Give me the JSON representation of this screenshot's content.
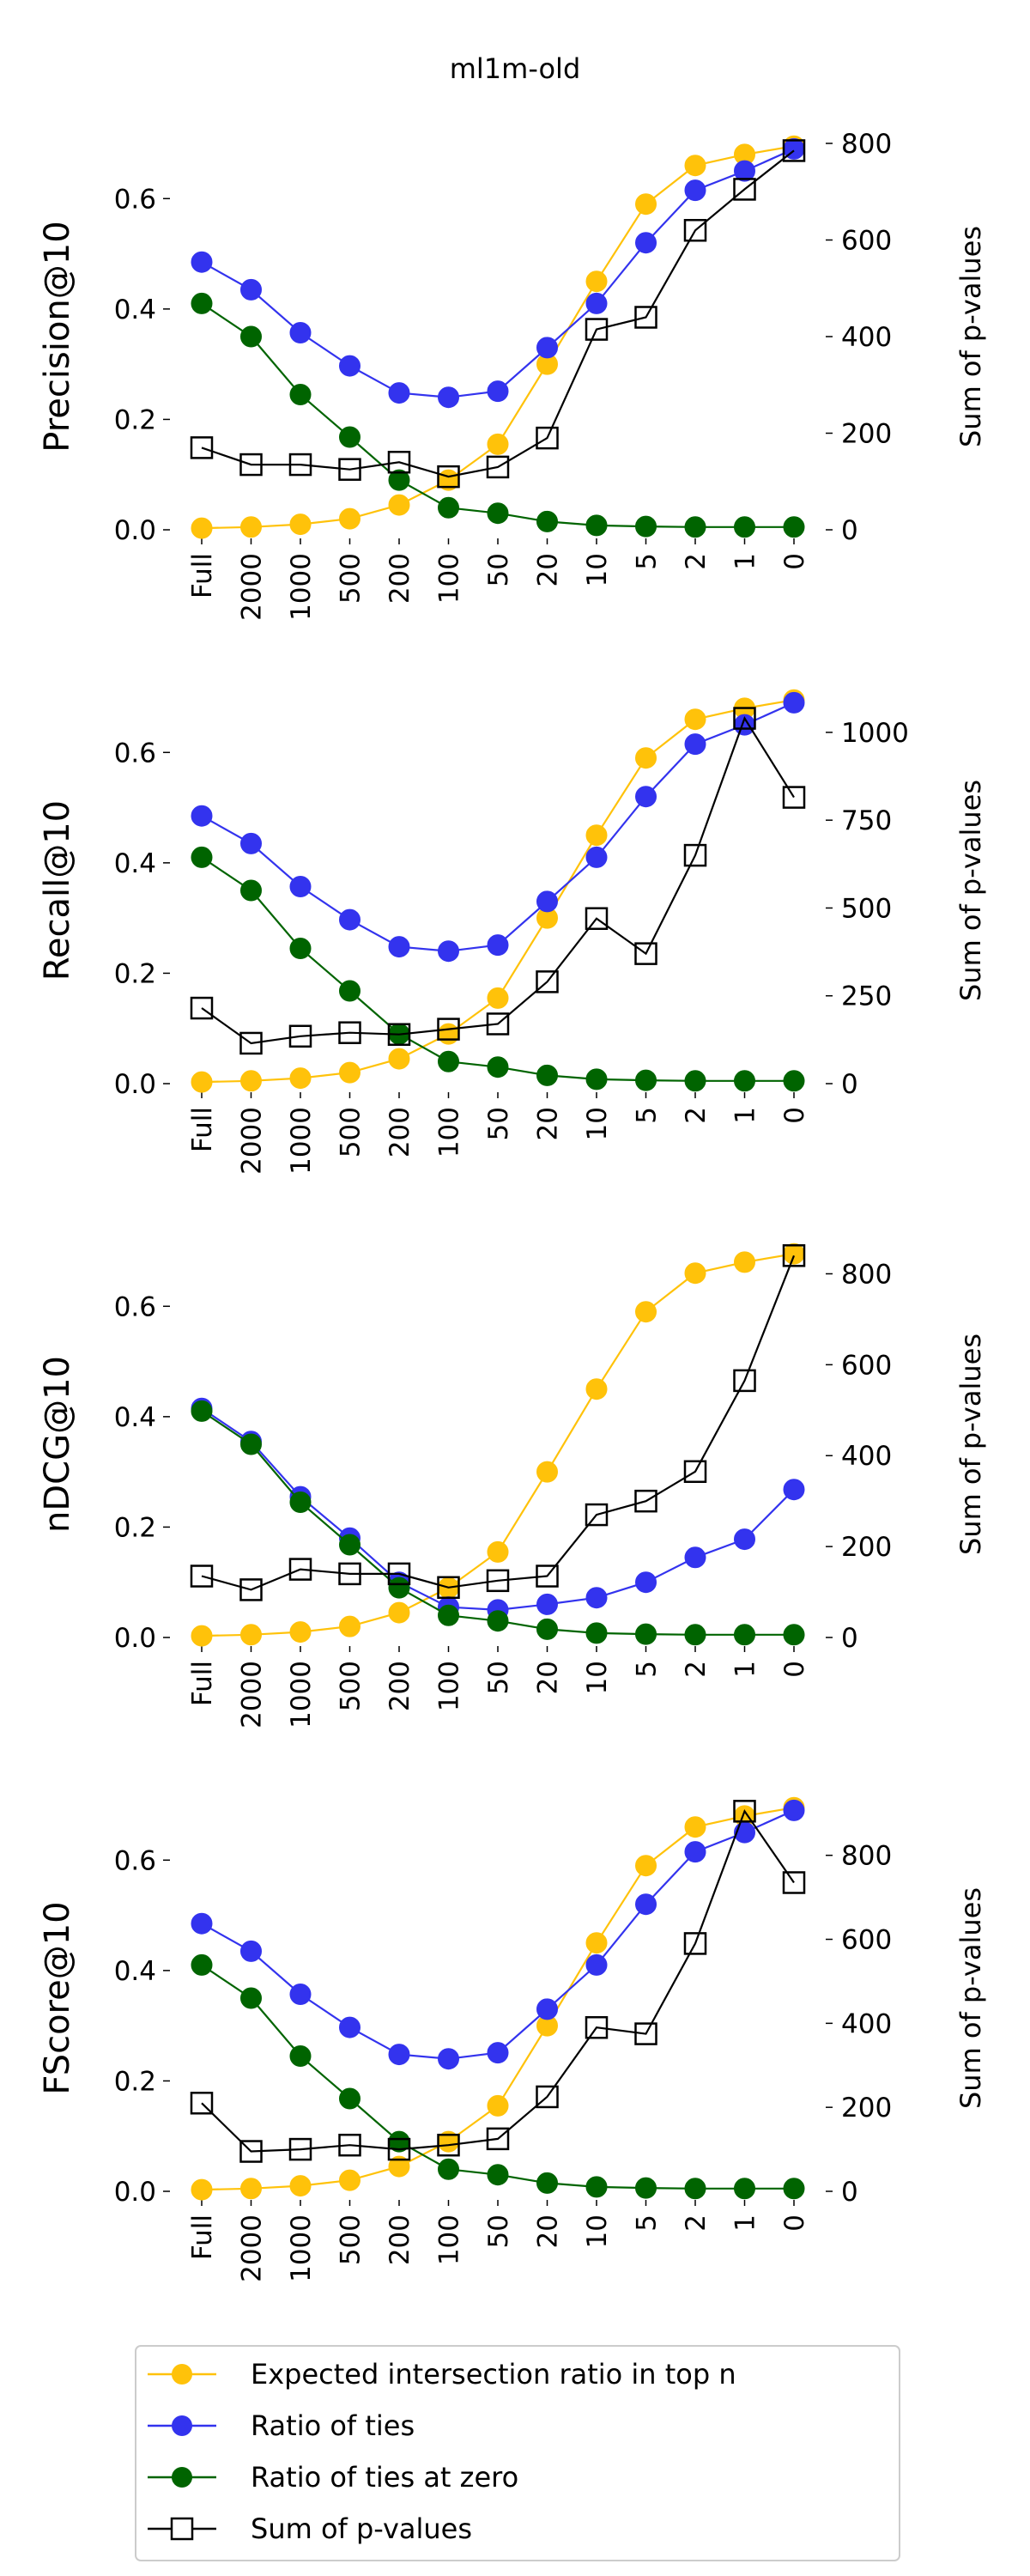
{
  "figure": {
    "title": "ml1m-old"
  },
  "colors": {
    "expected": "#FFC20A",
    "ties": "#3333EE",
    "ties_zero": "#006400",
    "pvalues": "#000000"
  },
  "legend": {
    "position": "bottom-center",
    "entries": [
      {
        "label": "Expected intersection ratio in top n",
        "marker": "circle",
        "color": "#FFC20A"
      },
      {
        "label": "Ratio of ties",
        "marker": "circle",
        "color": "#3333EE"
      },
      {
        "label": "Ratio of ties at zero",
        "marker": "circle",
        "color": "#006400"
      },
      {
        "label": "Sum of p-values",
        "marker": "open-square",
        "color": "#000000"
      }
    ]
  },
  "chart_data": [
    {
      "type": "line",
      "categories": [
        "Full",
        "2000",
        "1000",
        "500",
        "200",
        "100",
        "50",
        "20",
        "10",
        "5",
        "2",
        "1",
        "0"
      ],
      "ylabel": "Precision@10",
      "ylim": [
        0,
        0.7
      ],
      "yticks": [
        "0.0",
        "0.2",
        "0.4",
        "0.6"
      ],
      "y2label": "Sum of p-values",
      "y2lim": [
        0,
        800
      ],
      "y2ticks": [
        "0",
        "200",
        "400",
        "600",
        "800"
      ],
      "series": [
        {
          "name": "Expected intersection ratio in top n",
          "axis": "left",
          "values": [
            0.003,
            0.005,
            0.01,
            0.02,
            0.045,
            0.09,
            0.155,
            0.3,
            0.45,
            0.59,
            0.66,
            0.68,
            0.695
          ]
        },
        {
          "name": "Ratio of ties",
          "axis": "left",
          "values": [
            0.485,
            0.435,
            0.357,
            0.297,
            0.248,
            0.24,
            0.251,
            0.33,
            0.41,
            0.52,
            0.615,
            0.65,
            0.69
          ]
        },
        {
          "name": "Ratio of ties at zero",
          "axis": "left",
          "values": [
            0.41,
            0.35,
            0.245,
            0.168,
            0.09,
            0.04,
            0.03,
            0.015,
            0.008,
            0.006,
            0.005,
            0.005,
            0.005
          ]
        },
        {
          "name": "Sum of p-values",
          "axis": "right",
          "values": [
            170,
            135,
            135,
            125,
            140,
            110,
            130,
            190,
            415,
            440,
            620,
            705,
            785
          ]
        }
      ]
    },
    {
      "type": "line",
      "categories": [
        "Full",
        "2000",
        "1000",
        "500",
        "200",
        "100",
        "50",
        "20",
        "10",
        "5",
        "2",
        "1",
        "0"
      ],
      "ylabel": "Recall@10",
      "ylim": [
        0,
        0.7
      ],
      "yticks": [
        "0.0",
        "0.2",
        "0.4",
        "0.6"
      ],
      "y2label": "Sum of p-values",
      "y2lim": [
        0,
        1100
      ],
      "y2ticks": [
        "0",
        "250",
        "500",
        "750",
        "1000"
      ],
      "series": [
        {
          "name": "Expected intersection ratio in top n",
          "axis": "left",
          "values": [
            0.003,
            0.005,
            0.01,
            0.02,
            0.045,
            0.09,
            0.155,
            0.3,
            0.45,
            0.59,
            0.66,
            0.68,
            0.695
          ]
        },
        {
          "name": "Ratio of ties",
          "axis": "left",
          "values": [
            0.485,
            0.435,
            0.357,
            0.297,
            0.248,
            0.24,
            0.251,
            0.33,
            0.41,
            0.52,
            0.615,
            0.65,
            0.69
          ]
        },
        {
          "name": "Ratio of ties at zero",
          "axis": "left",
          "values": [
            0.41,
            0.35,
            0.245,
            0.168,
            0.09,
            0.04,
            0.03,
            0.015,
            0.008,
            0.006,
            0.005,
            0.005,
            0.005
          ]
        },
        {
          "name": "Sum of p-values",
          "axis": "right",
          "values": [
            215,
            115,
            135,
            145,
            140,
            155,
            170,
            290,
            470,
            370,
            650,
            1040,
            815
          ]
        }
      ]
    },
    {
      "type": "line",
      "categories": [
        "Full",
        "2000",
        "1000",
        "500",
        "200",
        "100",
        "50",
        "20",
        "10",
        "5",
        "2",
        "1",
        "0"
      ],
      "ylabel": "nDCG@10",
      "ylim": [
        0,
        0.7
      ],
      "yticks": [
        "0.0",
        "0.2",
        "0.4",
        "0.6"
      ],
      "y2label": "Sum of p-values",
      "y2lim": [
        0,
        850
      ],
      "y2ticks": [
        "0",
        "200",
        "400",
        "600",
        "800"
      ],
      "series": [
        {
          "name": "Expected intersection ratio in top n",
          "axis": "left",
          "values": [
            0.003,
            0.005,
            0.01,
            0.02,
            0.045,
            0.09,
            0.155,
            0.3,
            0.45,
            0.59,
            0.66,
            0.68,
            0.695
          ]
        },
        {
          "name": "Ratio of ties",
          "axis": "left",
          "values": [
            0.415,
            0.355,
            0.255,
            0.18,
            0.1,
            0.055,
            0.05,
            0.06,
            0.072,
            0.1,
            0.145,
            0.178,
            0.268
          ]
        },
        {
          "name": "Ratio of ties at zero",
          "axis": "left",
          "values": [
            0.41,
            0.35,
            0.245,
            0.168,
            0.09,
            0.04,
            0.03,
            0.015,
            0.008,
            0.006,
            0.005,
            0.005,
            0.005
          ]
        },
        {
          "name": "Sum of p-values",
          "axis": "right",
          "values": [
            135,
            105,
            150,
            140,
            140,
            110,
            125,
            135,
            270,
            300,
            365,
            565,
            840
          ]
        }
      ]
    },
    {
      "type": "line",
      "categories": [
        "Full",
        "2000",
        "1000",
        "500",
        "200",
        "100",
        "50",
        "20",
        "10",
        "5",
        "2",
        "1",
        "0"
      ],
      "ylabel": "FScore@10",
      "ylim": [
        0,
        0.7
      ],
      "yticks": [
        "0.0",
        "0.2",
        "0.4",
        "0.6"
      ],
      "y2label": "Sum of p-values",
      "y2lim": [
        0,
        920
      ],
      "y2ticks": [
        "0",
        "200",
        "400",
        "600",
        "800"
      ],
      "series": [
        {
          "name": "Expected intersection ratio in top n",
          "axis": "left",
          "values": [
            0.003,
            0.005,
            0.01,
            0.02,
            0.045,
            0.09,
            0.155,
            0.3,
            0.45,
            0.59,
            0.66,
            0.68,
            0.695
          ]
        },
        {
          "name": "Ratio of ties",
          "axis": "left",
          "values": [
            0.485,
            0.435,
            0.357,
            0.297,
            0.248,
            0.24,
            0.251,
            0.33,
            0.41,
            0.52,
            0.615,
            0.65,
            0.69
          ]
        },
        {
          "name": "Ratio of ties at zero",
          "axis": "left",
          "values": [
            0.41,
            0.35,
            0.245,
            0.168,
            0.09,
            0.04,
            0.03,
            0.015,
            0.008,
            0.006,
            0.005,
            0.005,
            0.005
          ]
        },
        {
          "name": "Sum of p-values",
          "axis": "right",
          "values": [
            210,
            95,
            100,
            110,
            100,
            110,
            125,
            225,
            390,
            375,
            590,
            905,
            735
          ]
        }
      ]
    }
  ]
}
